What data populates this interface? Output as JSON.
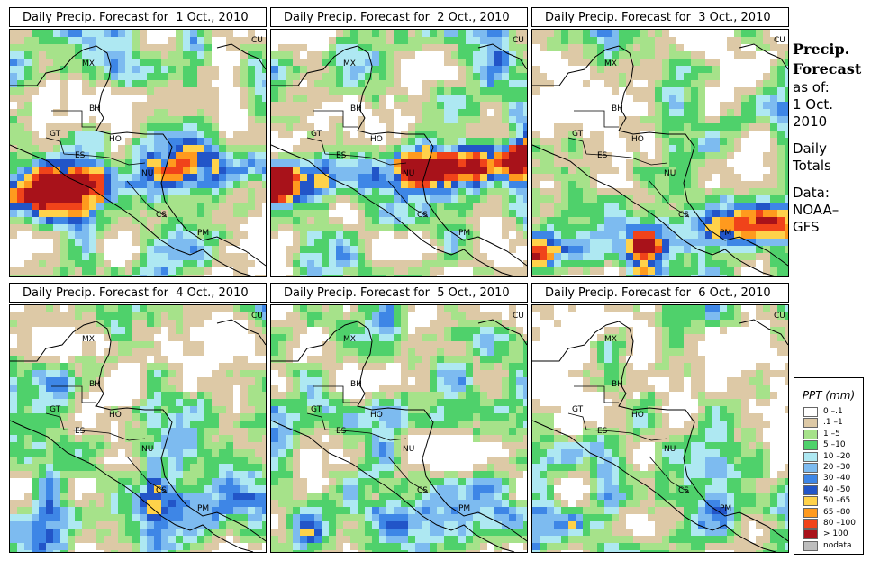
{
  "panels": [
    {
      "title": "Daily Precip. Forecast for  1 Oct., 2010"
    },
    {
      "title": "Daily Precip. Forecast for  2 Oct., 2010"
    },
    {
      "title": "Daily Precip. Forecast for  3 Oct., 2010"
    },
    {
      "title": "Daily Precip. Forecast for  4 Oct., 2010"
    },
    {
      "title": "Daily Precip. Forecast for  5 Oct., 2010"
    },
    {
      "title": "Daily Precip. Forecast for  6 Oct., 2010"
    }
  ],
  "region_labels": [
    "MX",
    "BH",
    "GT",
    "HO",
    "ES",
    "NU",
    "CS",
    "PM",
    "CU"
  ],
  "sidebar": {
    "heading_1": "Precip.",
    "heading_2": "Forecast",
    "asof": "as of:",
    "date_1": "1 Oct.",
    "date_2": "2010",
    "daily_1": "Daily",
    "daily_2": "Totals",
    "data_1": "Data:",
    "data_2": "NOAA–",
    "data_3": "GFS"
  },
  "legend": {
    "title": "PPT (mm)",
    "items": [
      {
        "label": "0 –.1",
        "color": "#ffffff"
      },
      {
        "label": ".1 –1",
        "color": "#ddc9a6"
      },
      {
        "label": "1 –5",
        "color": "#a6e28a"
      },
      {
        "label": "5 –10",
        "color": "#4fd16b"
      },
      {
        "label": "10 –20",
        "color": "#aee8f2"
      },
      {
        "label": "20 –30",
        "color": "#7dbbf0"
      },
      {
        "label": "30 –40",
        "color": "#3e86e6"
      },
      {
        "label": "40 –50",
        "color": "#2255c8"
      },
      {
        "label": "50 –65",
        "color": "#ffd24a"
      },
      {
        "label": "65 –80",
        "color": "#ff9a1e"
      },
      {
        "label": "80 –100",
        "color": "#f0431a"
      },
      {
        "label": "> 100",
        "color": "#a8121a"
      },
      {
        "label": "nodata",
        "color": "#bdbdbd"
      }
    ]
  }
}
